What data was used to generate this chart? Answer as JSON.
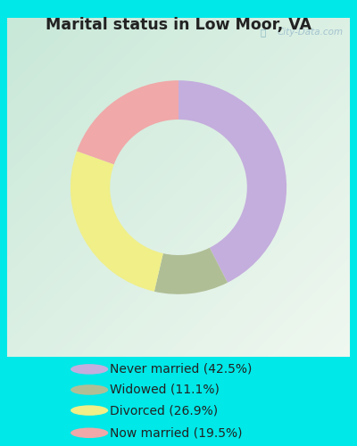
{
  "title": "Marital status in Low Moor, VA",
  "segments": [
    {
      "label": "Never married (42.5%)",
      "value": 42.5,
      "color": "#c4aedd"
    },
    {
      "label": "Widowed (11.1%)",
      "value": 11.1,
      "color": "#b0be96"
    },
    {
      "label": "Divorced (26.9%)",
      "value": 26.9,
      "color": "#f0ef88"
    },
    {
      "label": "Now married (19.5%)",
      "value": 19.5,
      "color": "#f0a8a8"
    }
  ],
  "bg_outer": "#00e8e8",
  "watermark": "City-Data.com",
  "donut_outer_r": 0.82,
  "donut_inner_r": 0.52,
  "start_angle": 90,
  "chart_area": [
    0.02,
    0.2,
    0.96,
    0.76
  ],
  "legend_area": [
    0.02,
    0.0,
    0.96,
    0.21
  ]
}
